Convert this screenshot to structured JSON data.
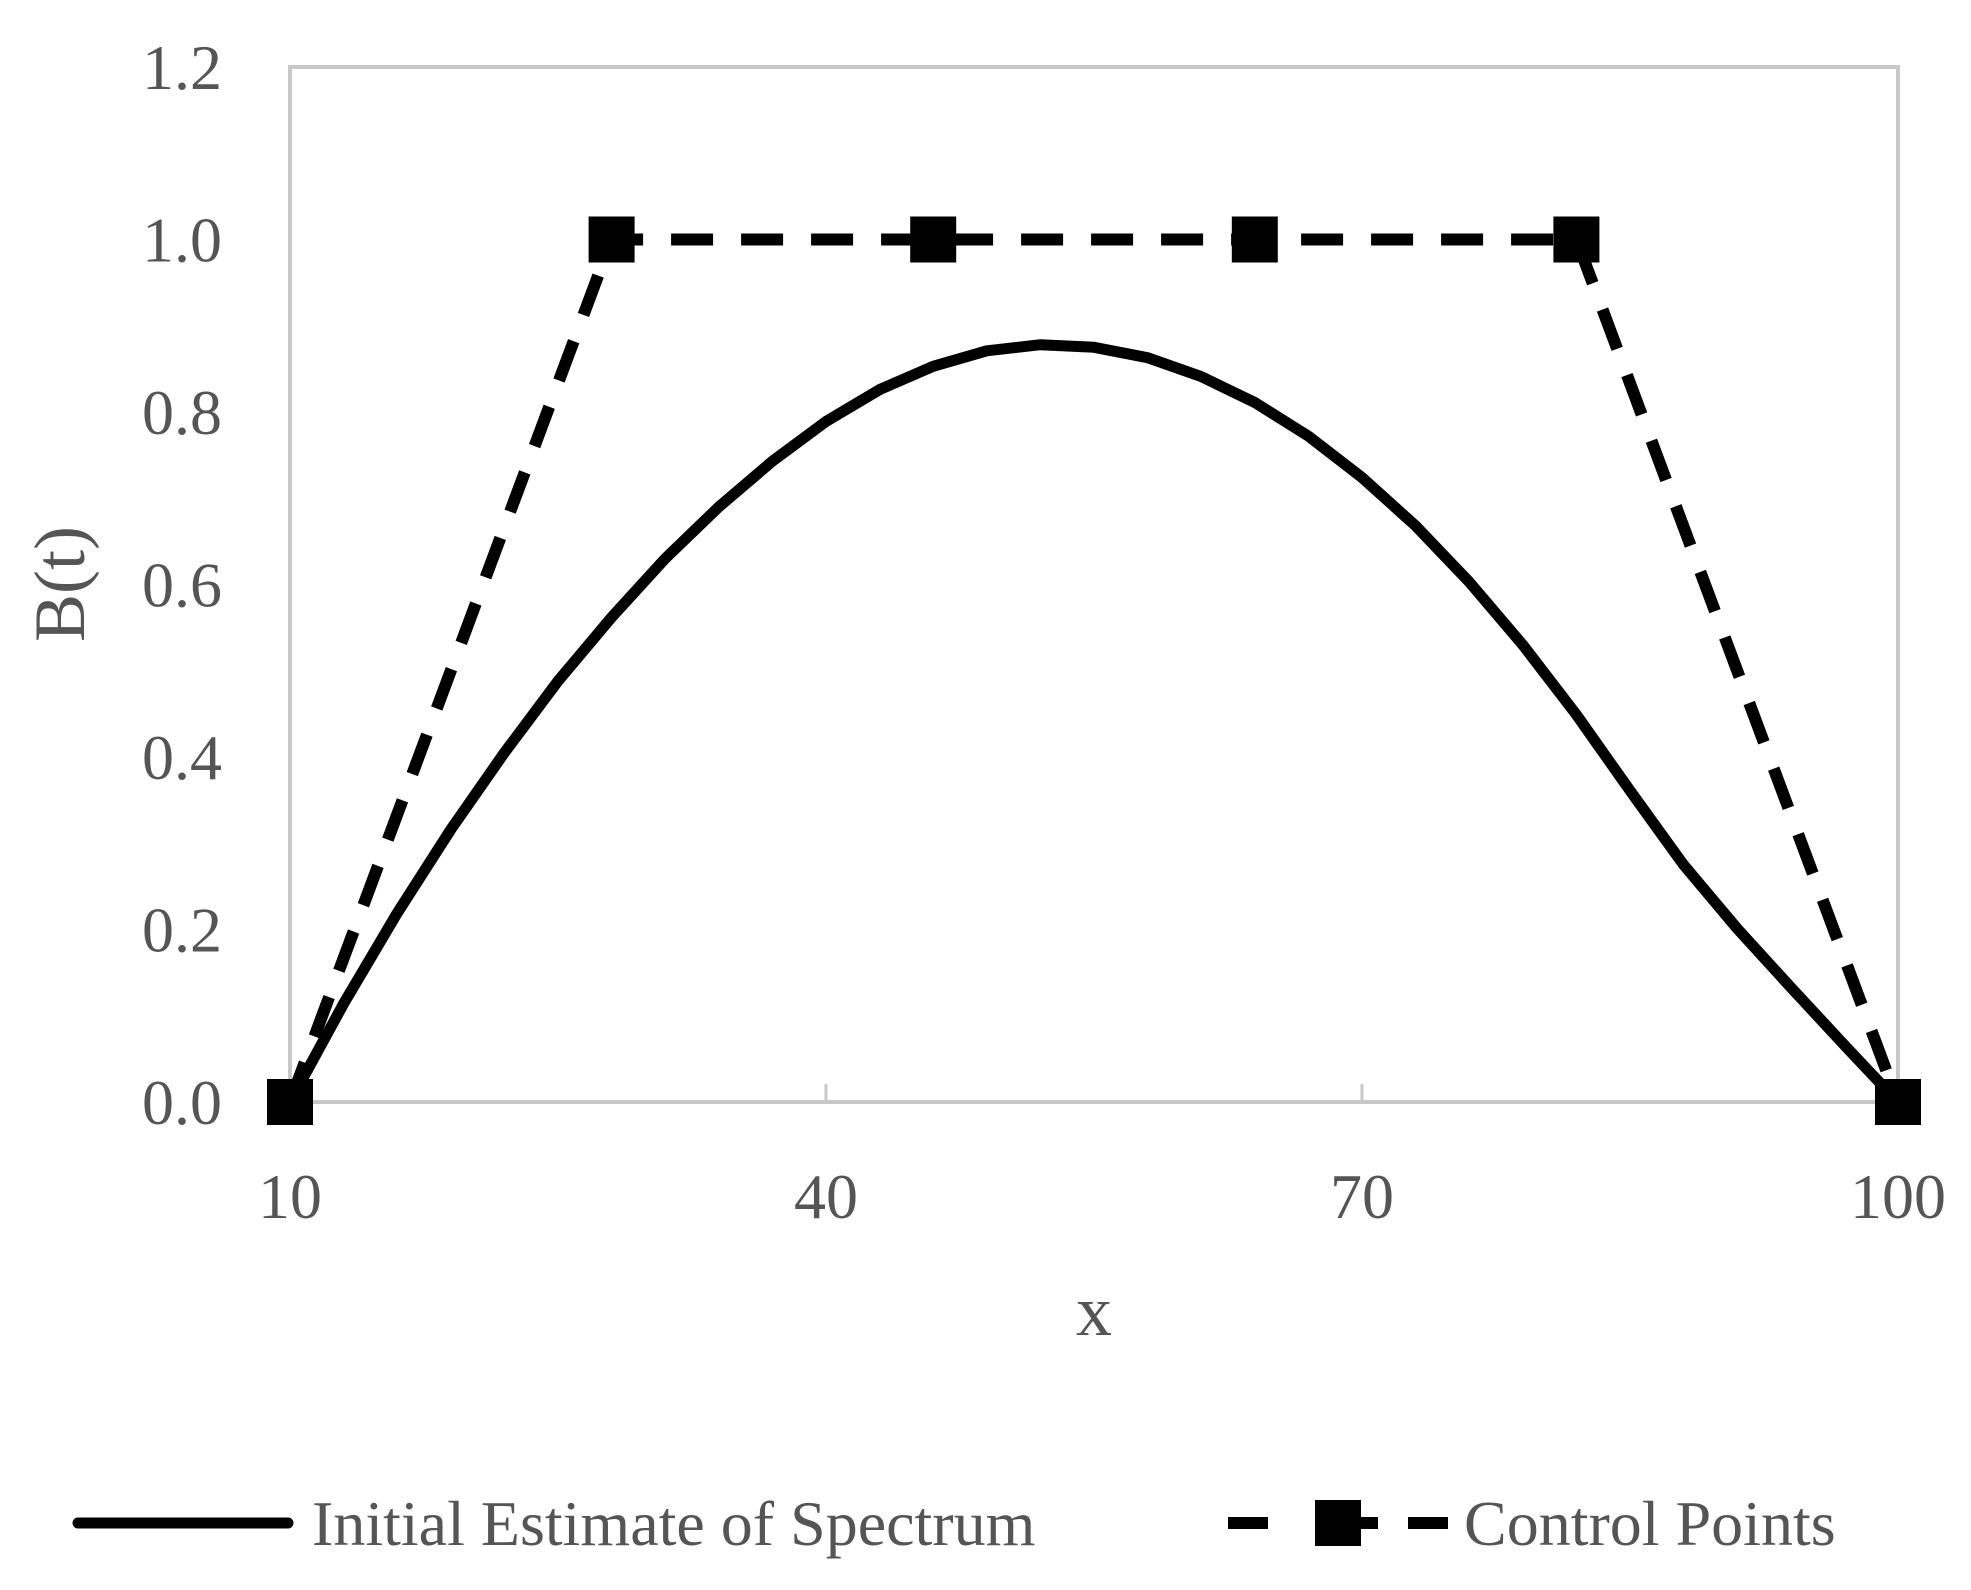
{
  "chart_data": {
    "type": "line",
    "xlabel": "x",
    "ylabel": "B(t)",
    "xlim": [
      10,
      100
    ],
    "ylim": [
      0,
      1.2
    ],
    "x_ticks": [
      "10",
      "40",
      "70",
      "100"
    ],
    "x_tick_values": [
      10,
      40,
      70,
      100
    ],
    "y_ticks": [
      "0.0",
      "0.2",
      "0.4",
      "0.6",
      "0.8",
      "1.0",
      "1.2"
    ],
    "y_tick_values": [
      0,
      0.2,
      0.4,
      0.6,
      0.8,
      1.0,
      1.2
    ],
    "grid": false,
    "legend_position": "bottom",
    "series": [
      {
        "name": "Initial Estimate of Spectrum",
        "style": "solid",
        "marker": "none",
        "color": "#000000",
        "x": [
          10,
          13,
          16,
          19,
          22,
          25,
          28,
          31,
          34,
          37,
          40,
          43,
          46,
          49,
          52,
          55,
          58,
          61,
          64,
          67,
          70,
          73,
          76,
          79,
          82,
          85,
          88,
          91,
          94,
          97,
          100
        ],
        "y": [
          0.0,
          0.114,
          0.219,
          0.316,
          0.405,
          0.488,
          0.562,
          0.63,
          0.69,
          0.743,
          0.789,
          0.826,
          0.853,
          0.871,
          0.878,
          0.875,
          0.863,
          0.841,
          0.811,
          0.772,
          0.724,
          0.668,
          0.603,
          0.53,
          0.449,
          0.361,
          0.275,
          0.201,
          0.133,
          0.066,
          0.0
        ]
      },
      {
        "name": "Control Points",
        "style": "dashed",
        "marker": "square",
        "color": "#000000",
        "x": [
          10,
          28,
          46,
          64,
          82,
          100
        ],
        "y": [
          0,
          1,
          1,
          1,
          1,
          0
        ]
      }
    ]
  }
}
